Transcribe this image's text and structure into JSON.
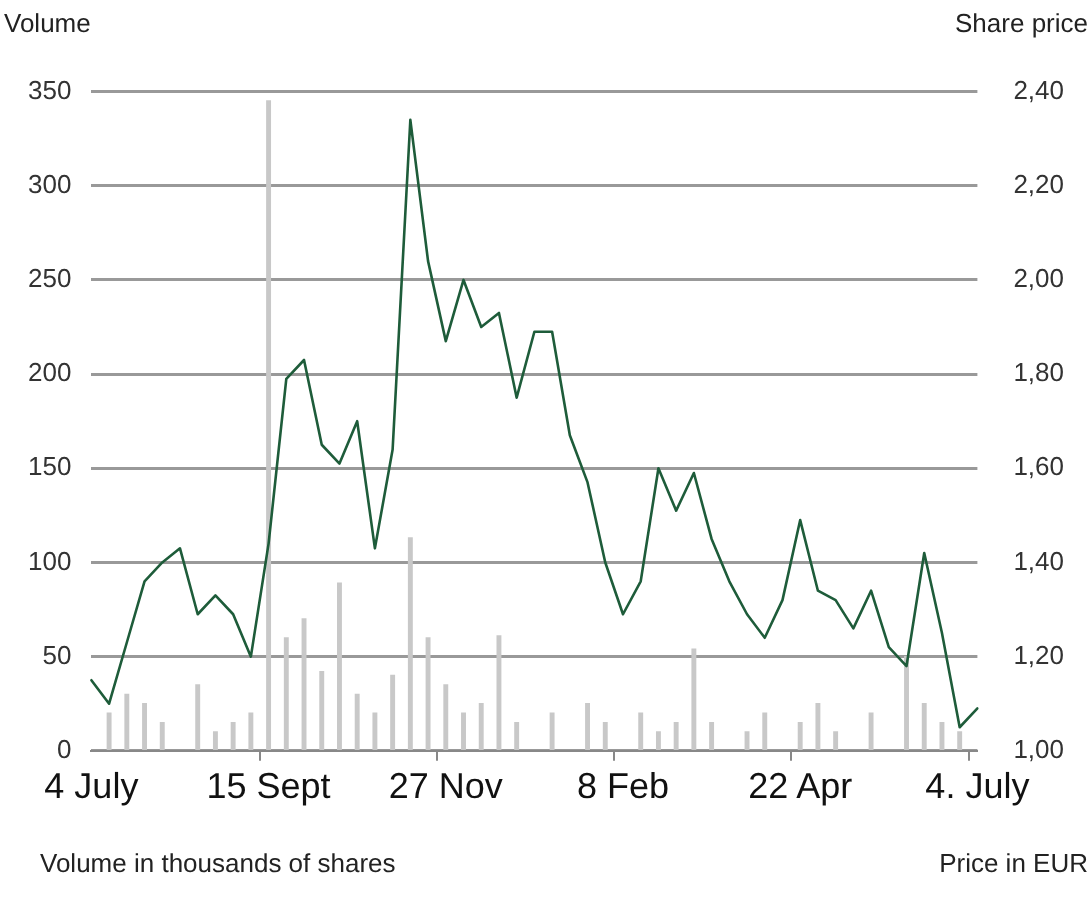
{
  "chart_data": {
    "type": "bar",
    "ylabel": "Volume",
    "y2label": "Share price",
    "annotations": [
      "Volume in thousands of shares",
      "Price in EUR"
    ],
    "categories": [
      "4 July",
      null,
      null,
      null,
      null,
      null,
      null,
      null,
      null,
      null,
      "15 Sept",
      null,
      null,
      null,
      null,
      null,
      null,
      null,
      null,
      null,
      "27 Nov",
      null,
      null,
      null,
      null,
      null,
      null,
      null,
      null,
      null,
      "8 Feb",
      null,
      null,
      null,
      null,
      null,
      null,
      null,
      null,
      null,
      "22 Apr",
      null,
      null,
      null,
      null,
      null,
      null,
      null,
      null,
      null,
      "4. July"
    ],
    "ylim": [
      0,
      350
    ],
    "yticks": [
      0,
      50,
      100,
      150,
      200,
      250,
      300,
      350
    ],
    "y2lim": [
      1.0,
      2.4
    ],
    "y2ticks": [
      {
        "value": 1.0,
        "label": "1,00"
      },
      {
        "value": 1.2,
        "label": "1,20"
      },
      {
        "value": 1.4,
        "label": "1,40"
      },
      {
        "value": 1.6,
        "label": "1,60"
      },
      {
        "value": 1.8,
        "label": "1,80"
      },
      {
        "value": 2.0,
        "label": "2,00"
      },
      {
        "value": 2.2,
        "label": "2,20"
      },
      {
        "value": 2.4,
        "label": "2,40"
      }
    ],
    "grid": "y",
    "legend": false,
    "series": [
      {
        "color": "#c8c8c8",
        "values": [
          null,
          20,
          30,
          25,
          15,
          null,
          35,
          10,
          15,
          20,
          345,
          60,
          70,
          42,
          89,
          30,
          20,
          40,
          113,
          60,
          35,
          20,
          25,
          61,
          15,
          null,
          20,
          null,
          25,
          15,
          null,
          20,
          10,
          15,
          54,
          15,
          null,
          10,
          20,
          null,
          15,
          25,
          10,
          null,
          20,
          null,
          50,
          25,
          15,
          10,
          null
        ]
      },
      {
        "type": "line",
        "axis": "y2",
        "color": "#1e5c3a",
        "values": [
          1.15,
          1.1,
          1.23,
          1.36,
          1.4,
          1.43,
          1.29,
          1.33,
          1.29,
          1.2,
          1.44,
          1.79,
          1.83,
          1.65,
          1.61,
          1.7,
          1.43,
          1.64,
          2.34,
          2.04,
          1.87,
          2.0,
          1.9,
          1.93,
          1.75,
          1.89,
          1.89,
          1.67,
          1.57,
          1.4,
          1.29,
          1.36,
          1.6,
          1.51,
          1.59,
          1.45,
          1.36,
          1.29,
          1.24,
          1.32,
          1.49,
          1.34,
          1.32,
          1.26,
          1.34,
          1.22,
          1.18,
          1.42,
          1.25,
          1.05,
          1.09
        ]
      }
    ]
  }
}
